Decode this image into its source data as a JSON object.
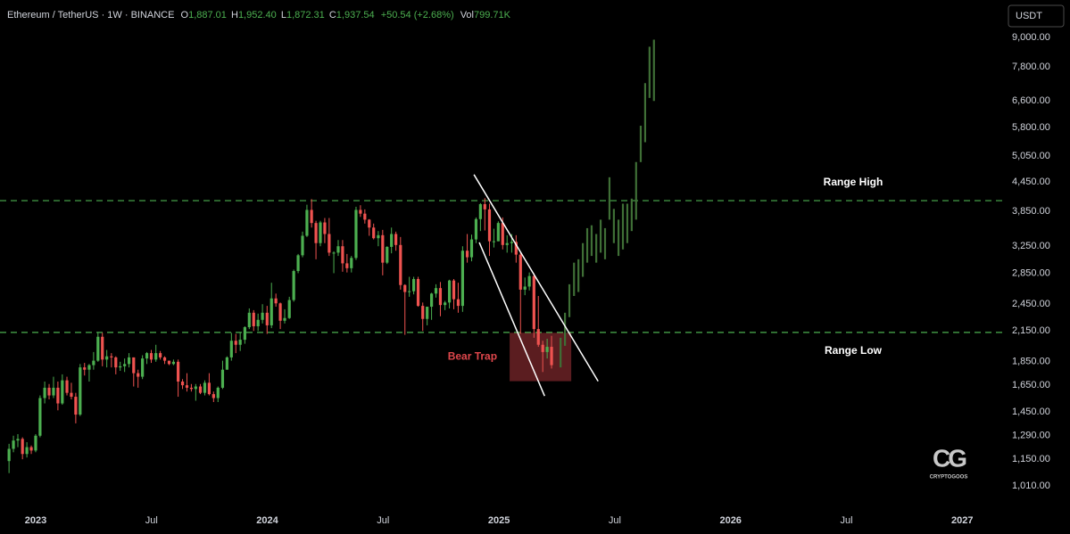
{
  "header": {
    "symbol": "Ethereum / TetherUS · 1W · BINANCE",
    "open": {
      "label": "O",
      "value": "1,887.01"
    },
    "high": {
      "label": "H",
      "value": "1,952.40"
    },
    "low": {
      "label": "L",
      "value": "1,872.31"
    },
    "close": {
      "label": "C",
      "value": "1,937.54"
    },
    "change": "+50.54 (+2.68%)",
    "volume": {
      "label": "Vol",
      "value": "799.71K"
    },
    "currency": "USDT"
  },
  "watermark": {
    "logo": "CG",
    "name": "CRYPTOGOOS"
  },
  "chart_data": {
    "type": "candlestick",
    "log_scale": true,
    "xlim": [
      2022.846,
      2027.18
    ],
    "ylim": [
      914,
      9480
    ],
    "xticks": [
      2023,
      {
        "value": 2023.5,
        "label": "Jul"
      },
      2024,
      {
        "value": 2024.5,
        "label": "Jul"
      },
      2025,
      {
        "value": 2025.5,
        "label": "Jul"
      },
      2026,
      {
        "value": 2026.5,
        "label": "Jul"
      },
      2027
    ],
    "yticks": [
      {
        "value": 9000,
        "label": "9,000.00"
      },
      {
        "value": 7800,
        "label": "7,800.00"
      },
      {
        "value": 6600,
        "label": "6,600.00"
      },
      {
        "value": 5800,
        "label": "5,800.00"
      },
      {
        "value": 5050,
        "label": "5,050.00"
      },
      {
        "value": 4450,
        "label": "4,450.00"
      },
      {
        "value": 3850,
        "label": "3,850.00"
      },
      {
        "value": 3250,
        "label": "3,250.00"
      },
      {
        "value": 2850,
        "label": "2,850.00"
      },
      {
        "value": 2450,
        "label": "2,450.00"
      },
      {
        "value": 2150,
        "label": "2,150.00"
      },
      {
        "value": 1850,
        "label": "1,850.00"
      },
      {
        "value": 1650,
        "label": "1,650.00"
      },
      {
        "value": 1450,
        "label": "1,450.00"
      },
      {
        "value": 1290,
        "label": "1,290.00"
      },
      {
        "value": 1150,
        "label": "1,150.00"
      },
      {
        "value": 1010,
        "label": "1,010.00"
      }
    ],
    "candles": {
      "up_color": "#4caf50",
      "down_color": "#ef5350",
      "x": [
        2022.885,
        2022.904,
        2022.923,
        2022.943,
        2022.962,
        2022.981,
        2023.0,
        2023.019,
        2023.039,
        2023.058,
        2023.077,
        2023.096,
        2023.115,
        2023.135,
        2023.154,
        2023.173,
        2023.192,
        2023.211,
        2023.231,
        2023.25,
        2023.269,
        2023.288,
        2023.307,
        2023.327,
        2023.346,
        2023.365,
        2023.384,
        2023.403,
        2023.423,
        2023.442,
        2023.461,
        2023.48,
        2023.499,
        2023.519,
        2023.538,
        2023.557,
        2023.576,
        2023.595,
        2023.615,
        2023.634,
        2023.653,
        2023.672,
        2023.691,
        2023.711,
        2023.73,
        2023.749,
        2023.768,
        2023.787,
        2023.807,
        2023.826,
        2023.845,
        2023.864,
        2023.883,
        2023.903,
        2023.922,
        2023.941,
        2023.96,
        2023.979,
        2023.999,
        2024.018,
        2024.037,
        2024.056,
        2024.075,
        2024.095,
        2024.114,
        2024.133,
        2024.152,
        2024.171,
        2024.191,
        2024.21,
        2024.229,
        2024.248,
        2024.267,
        2024.287,
        2024.306,
        2024.325,
        2024.344,
        2024.363,
        2024.383,
        2024.402,
        2024.421,
        2024.44,
        2024.459,
        2024.479,
        2024.498,
        2024.517,
        2024.536,
        2024.555,
        2024.575,
        2024.594,
        2024.613,
        2024.632,
        2024.651,
        2024.671,
        2024.69,
        2024.709,
        2024.728,
        2024.747,
        2024.767,
        2024.786,
        2024.805,
        2024.824,
        2024.843,
        2024.863,
        2024.882,
        2024.901,
        2024.92,
        2024.939,
        2024.959,
        2024.978,
        2024.997,
        2025.016,
        2025.035,
        2025.055,
        2025.074,
        2025.093,
        2025.112,
        2025.131,
        2025.151,
        2025.17,
        2025.189,
        2025.208,
        2025.227
      ],
      "open": [
        1140,
        1210,
        1260,
        1270,
        1180,
        1220,
        1200,
        1290,
        1550,
        1630,
        1570,
        1630,
        1510,
        1690,
        1590,
        1560,
        1430,
        1800,
        1780,
        1820,
        1860,
        2090,
        1870,
        1900,
        1890,
        1800,
        1810,
        1830,
        1890,
        1750,
        1720,
        1880,
        1930,
        1870,
        1930,
        1890,
        1860,
        1830,
        1850,
        1680,
        1650,
        1630,
        1620,
        1640,
        1590,
        1670,
        1580,
        1550,
        1630,
        1780,
        1890,
        2050,
        2010,
        2060,
        2190,
        2350,
        2200,
        2270,
        2350,
        2210,
        2520,
        2460,
        2260,
        2290,
        2500,
        2880,
        3110,
        3420,
        3880,
        3640,
        3300,
        3650,
        3450,
        3150,
        3150,
        3250,
        2990,
        2920,
        3070,
        3880,
        3810,
        3700,
        3560,
        3380,
        3430,
        3000,
        3240,
        3450,
        3270,
        2690,
        2600,
        2610,
        2770,
        2430,
        2280,
        2420,
        2580,
        2650,
        2440,
        2470,
        2750,
        2510,
        2430,
        3180,
        3080,
        3360,
        3710,
        3990,
        3890,
        3330,
        3330,
        3640,
        3270,
        3300,
        3320,
        3120,
        2630,
        2670,
        2810,
        2170,
        2010,
        1940,
        1990
      ],
      "high": [
        1240,
        1290,
        1300,
        1280,
        1250,
        1230,
        1300,
        1570,
        1680,
        1660,
        1720,
        1680,
        1740,
        1720,
        1670,
        1590,
        1830,
        1840,
        1830,
        1940,
        2140,
        2130,
        1960,
        1930,
        1900,
        1850,
        1880,
        1930,
        1890,
        1780,
        1910,
        1940,
        1960,
        2010,
        1950,
        1900,
        1860,
        1870,
        1870,
        1700,
        1750,
        1660,
        1660,
        1660,
        1690,
        1750,
        1600,
        1640,
        1860,
        1900,
        2130,
        2120,
        2130,
        2200,
        2400,
        2380,
        2340,
        2450,
        2430,
        2720,
        2580,
        2470,
        2390,
        2540,
        2900,
        3130,
        3490,
        3980,
        4090,
        3680,
        3680,
        3730,
        3730,
        3170,
        3350,
        3350,
        3130,
        3100,
        3940,
        3970,
        3890,
        3710,
        3630,
        3500,
        3520,
        3250,
        3560,
        3490,
        3400,
        2700,
        2800,
        2800,
        2800,
        2470,
        2420,
        2590,
        2700,
        2730,
        2490,
        2760,
        2770,
        2720,
        3250,
        3450,
        3440,
        3740,
        4010,
        4110,
        4000,
        3540,
        3670,
        3740,
        3430,
        3450,
        3430,
        3150,
        2790,
        2860,
        2850,
        2550,
        2050,
        2070,
        2100
      ],
      "low": [
        1075,
        1190,
        1220,
        1150,
        1160,
        1180,
        1190,
        1280,
        1510,
        1540,
        1550,
        1460,
        1500,
        1570,
        1540,
        1370,
        1420,
        1730,
        1680,
        1780,
        1850,
        1810,
        1800,
        1800,
        1740,
        1770,
        1760,
        1800,
        1640,
        1630,
        1700,
        1830,
        1840,
        1850,
        1870,
        1830,
        1820,
        1820,
        1560,
        1620,
        1600,
        1600,
        1530,
        1580,
        1570,
        1570,
        1520,
        1520,
        1620,
        1780,
        1860,
        1930,
        1950,
        2020,
        2170,
        2150,
        2150,
        2230,
        2120,
        2180,
        2420,
        2170,
        2230,
        2280,
        2480,
        2850,
        3080,
        3400,
        3560,
        3050,
        3250,
        3300,
        3100,
        2850,
        3100,
        2870,
        2860,
        2860,
        3040,
        3750,
        3630,
        3420,
        3360,
        3250,
        2820,
        2980,
        3140,
        3180,
        2630,
        2110,
        2540,
        2570,
        2420,
        2150,
        2210,
        2270,
        2530,
        2310,
        2380,
        2400,
        2390,
        2350,
        2360,
        3000,
        3020,
        3300,
        3500,
        3510,
        3100,
        3230,
        3330,
        3200,
        3150,
        3150,
        3000,
        2120,
        2560,
        2620,
        2080,
        1990,
        1760,
        1880,
        1790
      ],
      "close": [
        1210,
        1260,
        1270,
        1180,
        1220,
        1200,
        1290,
        1550,
        1630,
        1570,
        1630,
        1510,
        1690,
        1590,
        1560,
        1430,
        1800,
        1780,
        1820,
        1860,
        2090,
        1870,
        1900,
        1890,
        1800,
        1810,
        1830,
        1890,
        1750,
        1720,
        1880,
        1930,
        1870,
        1930,
        1890,
        1860,
        1830,
        1850,
        1680,
        1650,
        1630,
        1620,
        1640,
        1590,
        1670,
        1580,
        1550,
        1630,
        1780,
        1890,
        2050,
        2010,
        2060,
        2190,
        2350,
        2200,
        2270,
        2350,
        2210,
        2520,
        2460,
        2260,
        2290,
        2500,
        2880,
        3110,
        3420,
        3880,
        3640,
        3300,
        3650,
        3450,
        3150,
        3150,
        3250,
        2990,
        2920,
        3070,
        3880,
        3810,
        3700,
        3560,
        3380,
        3430,
        3000,
        3240,
        3450,
        3270,
        2690,
        2600,
        2610,
        2770,
        2430,
        2280,
        2420,
        2580,
        2650,
        2440,
        2470,
        2750,
        2510,
        2430,
        3180,
        3080,
        3360,
        3710,
        3990,
        3890,
        3330,
        3330,
        3640,
        3270,
        3300,
        3320,
        3120,
        2630,
        2670,
        2810,
        2170,
        2010,
        1940,
        1990,
        1820
      ]
    },
    "projection": {
      "color": "#3f6f36",
      "x": [
        2025.266,
        2025.285,
        2025.304,
        2025.324,
        2025.343,
        2025.362,
        2025.381,
        2025.4,
        2025.42,
        2025.439,
        2025.458,
        2025.477,
        2025.496,
        2025.516,
        2025.535,
        2025.554,
        2025.573,
        2025.592,
        2025.612,
        2025.631,
        2025.65,
        2025.669
      ],
      "low": [
        1800,
        2000,
        2300,
        2550,
        2600,
        2800,
        3000,
        3100,
        3000,
        3150,
        3050,
        3700,
        3300,
        3100,
        3200,
        3300,
        3500,
        3700,
        4900,
        5400,
        6700,
        6600
      ],
      "high": [
        2080,
        2350,
        2700,
        3000,
        3050,
        3300,
        3550,
        3600,
        3450,
        3700,
        3550,
        4550,
        3900,
        3700,
        4000,
        4000,
        4100,
        4900,
        5850,
        7200,
        8600,
        8900
      ]
    },
    "level_color": "#4caf50",
    "levels": [
      {
        "label": "Range High",
        "value": 4060,
        "position": "above"
      },
      {
        "label": "Range Low",
        "value": 2135,
        "position": "below"
      }
    ],
    "zone": {
      "label": "Bear Trap",
      "color": "#6b2226",
      "label_color": "#e0474c",
      "x": [
        2025.046,
        2025.312
      ],
      "y": [
        1683,
        2131
      ]
    },
    "trendline_color": "#ffffff",
    "trendlines": [
      {
        "x": [
          2024.892,
          2025.428
        ],
        "y": [
          4610,
          1683
        ]
      },
      {
        "x": [
          2024.915,
          2025.197
        ],
        "y": [
          3311,
          1566
        ]
      }
    ]
  }
}
